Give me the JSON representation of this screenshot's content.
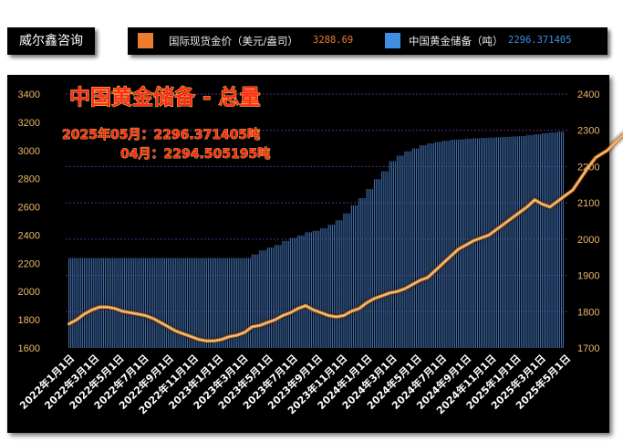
{
  "brand": {
    "name": "威尔鑫咨询"
  },
  "legend": {
    "items": [
      {
        "label": "国际现货金价（美元/盎司）",
        "value": "3288.69",
        "color": "#ee7c2e"
      },
      {
        "label": "中国黄金储备（吨）",
        "value": "2296.371405",
        "color": "#3f8ee0"
      }
    ]
  },
  "chart_data": {
    "type": "bar+line",
    "title": "中国黄金储备 - 总量",
    "annotations": [
      "2025年05月：2296.371405吨",
      "04月：2294.505195吨"
    ],
    "x_tick_labels": [
      "2022年1月1日",
      "2022年3月1日",
      "2022年5月1日",
      "2022年7月1日",
      "2022年9月1日",
      "2022年11月1日",
      "2023年1月1日",
      "2023年3月1日",
      "2023年5月1日",
      "2023年7月1日",
      "2023年9月1日",
      "2023年11月1日",
      "2024年1月1日",
      "2024年3月1日",
      "2024年5月1日",
      "2024年7月1日",
      "2024年9月1日",
      "2024年11月1日",
      "2025年1月1日",
      "2025年3月1日",
      "2025年5月1日"
    ],
    "y_left": {
      "label": "",
      "min": 1600,
      "max": 3400,
      "ticks": [
        1600,
        1800,
        2000,
        2200,
        2400,
        2600,
        2800,
        3000,
        3200,
        3400
      ]
    },
    "y_right": {
      "label": "",
      "min": 1700,
      "max": 2400,
      "ticks": [
        1700,
        1800,
        1900,
        2000,
        2100,
        2200,
        2300,
        2400
      ]
    },
    "grid": "dotted horizontal at right-axis ticks",
    "series": [
      {
        "name": "中国黄金储备（吨）",
        "type": "bar",
        "axis": "right",
        "values": [
          1948,
          1948,
          1948,
          1948,
          1948,
          1948,
          1948,
          1948,
          1948,
          1948,
          1948,
          1948,
          1948,
          1948,
          1948,
          1948,
          1948,
          1948,
          1948,
          1948,
          1948,
          1948,
          1948,
          1948,
          1948,
          1948,
          1948,
          1948,
          1948,
          1948,
          1948,
          1948,
          1948,
          1948,
          1948,
          1948,
          1948,
          1948,
          1948,
          1948,
          1948,
          1948,
          1948,
          1948,
          1948,
          1948,
          1948,
          1948,
          1948,
          1948,
          1948,
          1948,
          1948,
          1948,
          1948,
          1948,
          1948,
          1948,
          1948,
          1948,
          1948,
          1948,
          1948,
          1948,
          1948,
          1948,
          1948,
          1948,
          1948,
          1948,
          1948,
          1948,
          1948,
          1948,
          1948,
          1948,
          1948,
          1948,
          1948,
          1948,
          1948,
          1948,
          1948,
          1948,
          1948,
          1948,
          1948,
          1948,
          1948,
          1948,
          1948,
          1948,
          1948,
          1948,
          1948,
          1948,
          1958,
          1958,
          1958,
          1958,
          1969,
          1969,
          1969,
          1969,
          1977,
          1977,
          1977,
          1977,
          1984,
          1984,
          1984,
          1984,
          1995,
          1995,
          1995,
          1995,
          2003,
          2003,
          2003,
          2003,
          2010,
          2010,
          2010,
          2010,
          2019,
          2019,
          2019,
          2019,
          2023,
          2023,
          2023,
          2023,
          2030,
          2030,
          2030,
          2030,
          2040,
          2040,
          2040,
          2040,
          2052,
          2052,
          2052,
          2052,
          2071,
          2071,
          2071,
          2071,
          2093,
          2093,
          2093,
          2093,
          2113,
          2113,
          2113,
          2113,
          2138,
          2138,
          2138,
          2138,
          2165,
          2165,
          2165,
          2165,
          2187,
          2187,
          2187,
          2187,
          2215,
          2215,
          2215,
          2215,
          2230,
          2230,
          2230,
          2230,
          2242,
          2242,
          2242,
          2242,
          2250,
          2250,
          2250,
          2250,
          2259,
          2259,
          2259,
          2259,
          2264,
          2264,
          2264,
          2264,
          2268,
          2268,
          2268,
          2268,
          2271,
          2271,
          2271,
          2271,
          2274,
          2274,
          2274,
          2274,
          2275,
          2275,
          2275,
          2275,
          2277,
          2277,
          2277,
          2277,
          2278,
          2278,
          2278,
          2278,
          2279,
          2279,
          2279,
          2279,
          2280,
          2280,
          2280,
          2280,
          2281,
          2281,
          2281,
          2281,
          2282,
          2282,
          2282,
          2282,
          2283,
          2283,
          2283,
          2283,
          2284,
          2284,
          2284,
          2284,
          2287,
          2287,
          2287,
          2287,
          2289,
          2289,
          2289,
          2289,
          2292,
          2292,
          2292,
          2292,
          2294,
          2294,
          2294,
          2294,
          2296,
          2296,
          2296,
          2296
        ]
      },
      {
        "name": "国际现货金价（美元/盎司）",
        "type": "line",
        "axis": "left",
        "x_index": [
          0,
          4,
          8,
          12,
          16,
          20,
          24,
          28,
          32,
          36,
          40,
          44,
          48,
          52,
          56,
          60,
          64,
          68,
          72,
          76,
          80,
          84,
          88,
          92,
          96,
          100,
          104,
          108,
          112,
          116,
          120,
          124,
          128,
          132,
          136,
          140,
          144,
          148,
          152,
          156,
          160,
          164,
          168,
          172,
          176,
          180,
          184,
          188,
          192,
          196,
          200,
          204,
          208,
          212,
          216,
          220,
          224,
          228,
          232,
          236,
          240,
          244,
          248,
          252,
          256,
          260,
          264,
          268,
          272,
          276
        ],
        "values": [
          1770,
          1800,
          1840,
          1870,
          1890,
          1890,
          1880,
          1860,
          1850,
          1840,
          1830,
          1810,
          1780,
          1750,
          1720,
          1700,
          1680,
          1660,
          1650,
          1650,
          1660,
          1680,
          1690,
          1710,
          1750,
          1760,
          1780,
          1800,
          1830,
          1850,
          1880,
          1900,
          1870,
          1850,
          1830,
          1820,
          1830,
          1860,
          1880,
          1920,
          1950,
          1970,
          1990,
          2000,
          2020,
          2050,
          2080,
          2100,
          2150,
          2200,
          2250,
          2300,
          2330,
          2360,
          2380,
          2400,
          2440,
          2480,
          2520,
          2560,
          2600,
          2650,
          2620,
          2600,
          2640,
          2680,
          2720,
          2800,
          2880,
          2950
        ]
      },
      {
        "name": "金价收尾",
        "type": "line",
        "axis": "left",
        "x_index": [
          276,
          282,
          288,
          294,
          300,
          304,
          308
        ],
        "values": [
          2950,
          3000,
          3080,
          3150,
          3200,
          3240,
          3288.69
        ]
      }
    ]
  }
}
